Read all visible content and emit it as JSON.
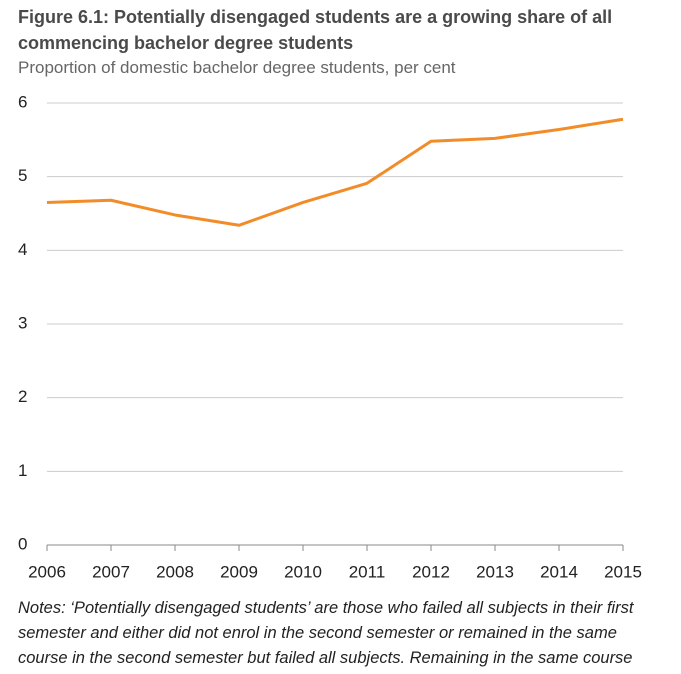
{
  "chart_data": {
    "type": "line",
    "title": "Figure 6.1: Potentially disengaged students are a growing share of all commencing bachelor degree students",
    "subtitle": "Proportion of domestic bachelor degree students, per cent",
    "categories": [
      "2006",
      "2007",
      "2008",
      "2009",
      "2010",
      "2011",
      "2012",
      "2013",
      "2014",
      "2015"
    ],
    "series": [
      {
        "color": "#f28c28",
        "values": [
          4.65,
          4.68,
          4.48,
          4.34,
          4.65,
          4.91,
          5.48,
          5.52,
          5.64,
          5.78
        ]
      }
    ],
    "ylim": [
      0,
      6
    ],
    "yticks": [
      0,
      1,
      2,
      3,
      4,
      5,
      6
    ],
    "grid": true,
    "note": "Notes: ‘Potentially disengaged students’ are those who failed all subjects in their first semester and either did not enrol in the second semester or remained in the same course in the second semester but failed all subjects. Remaining in the same course"
  }
}
